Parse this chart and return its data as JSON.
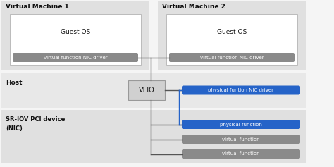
{
  "bg_color": "#f5f5f5",
  "vm_bg": "#e0e0e0",
  "host_bg": "#e8e8e8",
  "sriov_bg": "#e0e0e0",
  "guest_os_bg": "#ffffff",
  "blue_color": "#2563c8",
  "gray_box_color": "#8a8a8a",
  "dark_text": "#111111",
  "white_text": "#ffffff",
  "line_color": "#555555",
  "vfio_bg": "#d0d0d0",
  "vfio_border": "#999999",
  "vm1_label": "Virtual Machine 1",
  "vm2_label": "Virtual Machine 2",
  "host_label": "Host",
  "sriov_label": "SR-IOV PCI device\n(NIC)",
  "vfio_label": "VFIO",
  "guest_os_label": "Guest OS",
  "vf_driver_label": "virtual function NIC driver",
  "phys_func_driver_label": "physical funtion NIC driver",
  "phys_func_label": "physical function",
  "virt_func1_label": "virtual function",
  "virt_func2_label": "virtual function"
}
